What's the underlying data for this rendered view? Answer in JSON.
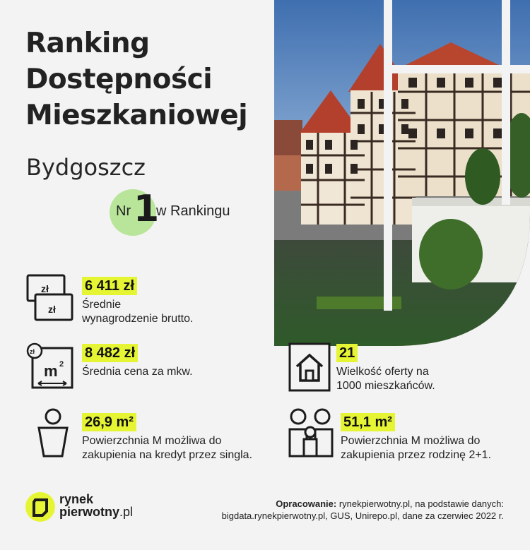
{
  "title": {
    "line1": "Ranking",
    "line2": "Dostępności",
    "line3": "Mieszkaniowej"
  },
  "city": "Bydgoszcz",
  "rank": {
    "prefix": "Nr",
    "number": "1",
    "suffix": "w Rankingu"
  },
  "photo": {
    "alt": "Bydgoszcz granaries on the Brda river"
  },
  "stats": {
    "salary": {
      "value": "6 411 zł",
      "line1": "Średnie",
      "line2": "wynagrodzenie brutto.",
      "icon": "banknotes-icon",
      "icon_text": "zł"
    },
    "price": {
      "value": "8 482 zł",
      "line1": "Średnia cena za mkw.",
      "icon": "price-per-sqm-icon",
      "icon_text": "m",
      "icon_sup": "2"
    },
    "offer": {
      "value": "21",
      "line1": "Wielkość oferty na",
      "line2": "1000 mieszkańców.",
      "icon": "house-icon"
    },
    "single": {
      "value": "26,9 m²",
      "line1": "Powierzchnia M możliwa do",
      "line2": "zakupienia na kredyt przez singla.",
      "icon": "single-person-icon"
    },
    "family": {
      "value": "51,1 m²",
      "line1": "Powierzchnia M możliwa do",
      "line2": "zakupienia przez rodzinę 2+1.",
      "icon": "family-icon"
    }
  },
  "footer": {
    "brand_line1": "rynek",
    "brand_line2": "pierwotny",
    "brand_tld": ".pl",
    "source_label": "Opracowanie:",
    "source_text1": " rynekpierwotny.pl, na podstawie danych:",
    "source_text2": "bigdata.rynekpierwotny.pl, GUS, Unirepo.pl, dane za czerwiec 2022 r."
  },
  "colors": {
    "accent_yellow": "#e6f533",
    "accent_green": "#b9e59a",
    "background": "#f3f3f3",
    "text": "#1c1c1c"
  }
}
